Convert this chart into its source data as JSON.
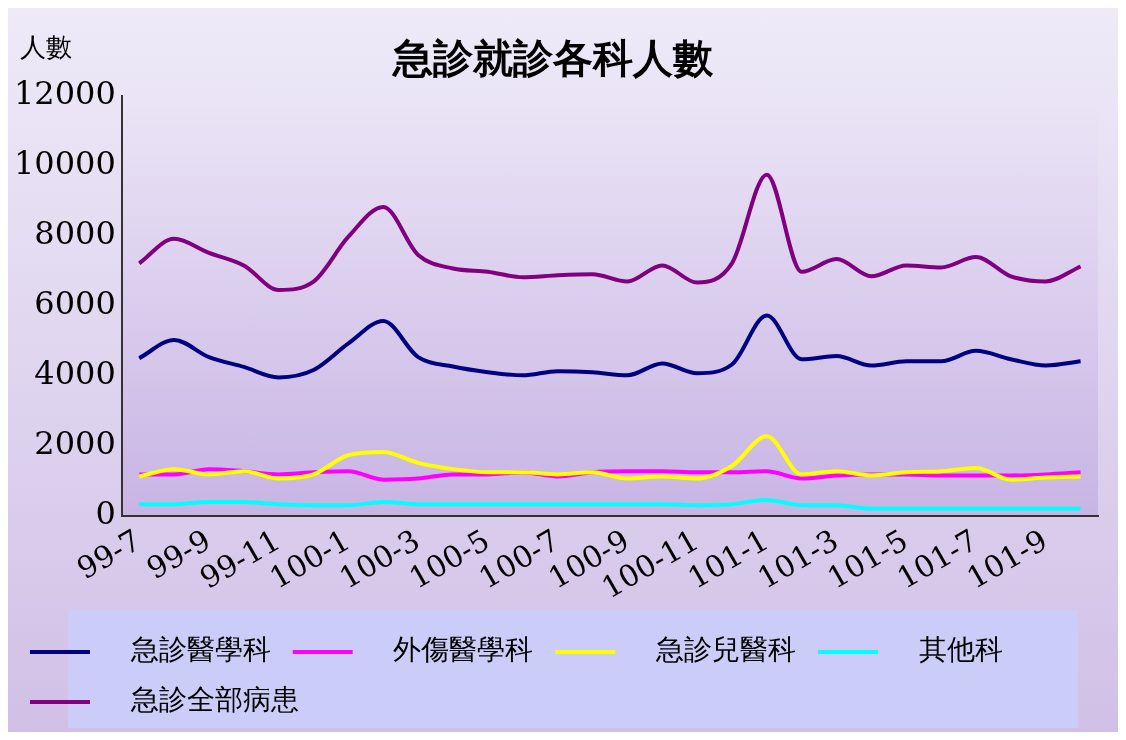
{
  "chart_data": {
    "type": "line",
    "title": "急診就診各科人數",
    "ylabel": "人數",
    "categories": [
      "99-7",
      null,
      "99-9",
      null,
      "99-11",
      null,
      "100-1",
      null,
      "100-3",
      null,
      "100-5",
      null,
      "100-7",
      null,
      "100-9",
      null,
      "100-11",
      null,
      "101-1",
      null,
      "101-3",
      null,
      "101-5",
      null,
      "101-7",
      null,
      "101-9",
      null
    ],
    "series": [
      {
        "name": "急診醫學科",
        "color": "#000080",
        "values": [
          4510,
          5030,
          4540,
          4260,
          3960,
          4170,
          4930,
          5570,
          4540,
          4270,
          4110,
          4020,
          4140,
          4110,
          4020,
          4360,
          4080,
          4330,
          5730,
          4480,
          4570,
          4300,
          4420,
          4420,
          4720,
          4480,
          4300,
          4420
        ]
      },
      {
        "name": "外傷醫學科",
        "color": "#ff00ff",
        "values": [
          1190,
          1190,
          1340,
          1280,
          1190,
          1250,
          1280,
          1040,
          1070,
          1190,
          1190,
          1250,
          1130,
          1250,
          1280,
          1280,
          1250,
          1250,
          1280,
          1070,
          1160,
          1190,
          1190,
          1160,
          1160,
          1160,
          1190,
          1250
        ]
      },
      {
        "name": "急診兒醫科",
        "color": "#ffff00",
        "values": [
          1130,
          1340,
          1190,
          1280,
          1070,
          1190,
          1740,
          1830,
          1520,
          1340,
          1250,
          1250,
          1190,
          1250,
          1070,
          1130,
          1070,
          1430,
          2280,
          1190,
          1280,
          1160,
          1250,
          1280,
          1370,
          1040,
          1100,
          1130
        ]
      },
      {
        "name": "其他科",
        "color": "#00ffff",
        "values": [
          340,
          340,
          400,
          400,
          340,
          310,
          310,
          400,
          340,
          340,
          340,
          340,
          340,
          340,
          340,
          340,
          310,
          340,
          460,
          310,
          310,
          210,
          210,
          210,
          210,
          210,
          210,
          210
        ]
      },
      {
        "name": "急診全部病患",
        "color": "#800080",
        "values": [
          7220,
          7920,
          7520,
          7160,
          6460,
          6700,
          7980,
          8830,
          7460,
          7070,
          6980,
          6820,
          6880,
          6910,
          6700,
          7160,
          6670,
          7220,
          9750,
          6980,
          7340,
          6850,
          7160,
          7100,
          7400,
          6850,
          6700,
          7130
        ]
      }
    ],
    "ylim": [
      0,
      12000
    ],
    "yticks": [
      0,
      2000,
      4000,
      6000,
      8000,
      10000,
      12000
    ],
    "grid": false,
    "legend": "bottom",
    "marker": "none",
    "line_style": "solid"
  }
}
